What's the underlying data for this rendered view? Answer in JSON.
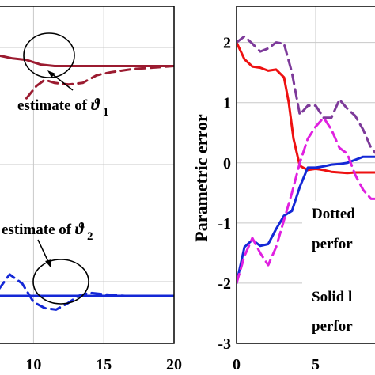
{
  "chart_data": [
    {
      "type": "line",
      "title": "",
      "xlabel": "",
      "ylabel": "",
      "xlim": [
        7.5,
        20
      ],
      "ylim": [
        0,
        2.2
      ],
      "x_ticks": [
        {
          "v": 10,
          "label": "10"
        },
        {
          "v": 15,
          "label": "15"
        },
        {
          "v": 20,
          "label": "20"
        }
      ],
      "grid": true,
      "annotations": [
        {
          "text": "estimate of ",
          "symbol": "ϑ",
          "subscript": "1"
        },
        {
          "text": "estimate of ",
          "symbol": "ϑ",
          "subscript": "2"
        }
      ],
      "series": [
        {
          "color": "#9b1b30",
          "style": "solid",
          "x": [
            7.5,
            8.5,
            9.5,
            10.5,
            11.5,
            13,
            15,
            17,
            20
          ],
          "y": [
            1.88,
            1.86,
            1.85,
            1.82,
            1.81,
            1.81,
            1.81,
            1.81,
            1.81
          ]
        },
        {
          "color": "#9b1b30",
          "style": "dashed",
          "x": [
            9.5,
            10.2,
            10.8,
            11.5,
            12.5,
            13.5,
            14.5,
            15.5,
            17,
            18.5,
            20
          ],
          "y": [
            1.6,
            1.68,
            1.72,
            1.7,
            1.69,
            1.7,
            1.75,
            1.77,
            1.79,
            1.8,
            1.81
          ]
        },
        {
          "color": "#1428d6",
          "style": "solid",
          "x": [
            7.5,
            9,
            10.5,
            12,
            14,
            16,
            18,
            20
          ],
          "y": [
            0.31,
            0.31,
            0.31,
            0.31,
            0.31,
            0.31,
            0.31,
            0.31
          ]
        },
        {
          "color": "#1428d6",
          "style": "dashed",
          "x": [
            7.5,
            8.3,
            9.2,
            10,
            10.8,
            11.6,
            12.4,
            13.2,
            14,
            15,
            16.5,
            18,
            20
          ],
          "y": [
            0.35,
            0.45,
            0.39,
            0.27,
            0.23,
            0.22,
            0.26,
            0.31,
            0.33,
            0.32,
            0.31,
            0.31,
            0.31
          ]
        }
      ]
    },
    {
      "type": "line",
      "title": "",
      "xlabel": "",
      "ylabel": "Parametric error",
      "xlim": [
        0,
        9
      ],
      "ylim": [
        -3,
        2.6
      ],
      "x_ticks": [
        {
          "v": 0,
          "label": "0"
        },
        {
          "v": 5,
          "label": "5"
        }
      ],
      "y_ticks": [
        {
          "v": 2,
          "label": "2"
        },
        {
          "v": 1,
          "label": "1"
        },
        {
          "v": 0,
          "label": "0"
        },
        {
          "v": -1,
          "label": "-1"
        },
        {
          "v": -2,
          "label": "-2"
        },
        {
          "v": -3,
          "label": "-3"
        }
      ],
      "grid": true,
      "legend_text": [
        "Dotted",
        "perfor",
        "Solid l",
        "perfor"
      ],
      "series": [
        {
          "color": "#ee1111",
          "style": "solid",
          "x": [
            0,
            0.5,
            1,
            1.5,
            2,
            2.5,
            3,
            3.3,
            3.6,
            4,
            4.5,
            5,
            5.5,
            6,
            6.5,
            7,
            7.5,
            8,
            8.5,
            9
          ],
          "y": [
            2,
            1.72,
            1.6,
            1.58,
            1.53,
            1.55,
            1.42,
            1.0,
            0.4,
            -0.05,
            -0.12,
            -0.1,
            -0.12,
            -0.15,
            -0.16,
            -0.17,
            -0.16,
            -0.16,
            -0.16,
            -0.16
          ]
        },
        {
          "color": "#1428d6",
          "style": "solid",
          "x": [
            0,
            0.5,
            1,
            1.5,
            2,
            2.5,
            3,
            3.5,
            4,
            4.5,
            5,
            5.5,
            6,
            6.5,
            7,
            7.5,
            8,
            8.5,
            9
          ],
          "y": [
            -2,
            -1.4,
            -1.28,
            -1.38,
            -1.35,
            -1.1,
            -0.88,
            -0.8,
            -0.4,
            -0.08,
            -0.08,
            -0.06,
            -0.03,
            -0.02,
            0,
            0.05,
            0.1,
            0.1,
            0.1
          ]
        },
        {
          "color": "#7d3a9a",
          "style": "dashed",
          "x": [
            0,
            0.5,
            1,
            1.5,
            2,
            2.5,
            3,
            3.5,
            4,
            4.5,
            5,
            5.5,
            6,
            6.5,
            7,
            7.5,
            8,
            8.5,
            9
          ],
          "y": [
            2,
            2.1,
            1.98,
            1.85,
            1.9,
            2.0,
            1.98,
            1.5,
            0.8,
            0.95,
            0.95,
            0.75,
            0.75,
            1.05,
            0.9,
            0.78,
            0.55,
            0.25,
            0.1
          ]
        },
        {
          "color": "#e020e0",
          "style": "dashed",
          "x": [
            0,
            0.5,
            1,
            1.5,
            2,
            2.5,
            3,
            3.5,
            4,
            4.5,
            5,
            5.5,
            6,
            6.5,
            7,
            7.5,
            8,
            8.5,
            9
          ],
          "y": [
            -2,
            -1.55,
            -1.25,
            -1.5,
            -1.7,
            -1.4,
            -0.95,
            -0.5,
            0,
            0.4,
            0.6,
            0.75,
            0.55,
            0.25,
            0.15,
            -0.2,
            -0.45,
            -0.6,
            -0.6
          ]
        }
      ]
    }
  ]
}
